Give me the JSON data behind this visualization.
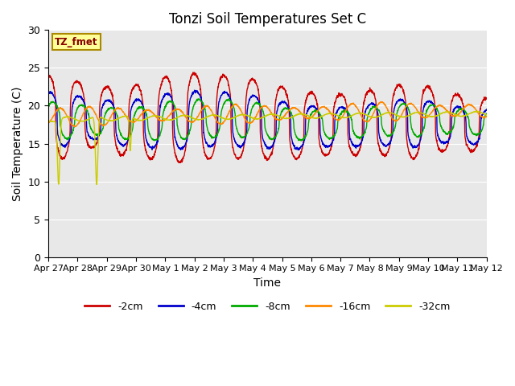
{
  "title": "Tonzi Soil Temperatures Set C",
  "xlabel": "Time",
  "ylabel": "Soil Temperature (C)",
  "ylim": [
    0,
    30
  ],
  "yticks": [
    0,
    5,
    10,
    15,
    20,
    25,
    30
  ],
  "background_color": "#e8e8e8",
  "label_box_text": "TZ_fmet",
  "label_box_color": "#ffff99",
  "label_box_edge": "#aa8800",
  "colors": {
    "-2cm": "#cc0000",
    "-4cm": "#0000cc",
    "-8cm": "#00aa00",
    "-16cm": "#ff8800",
    "-32cm": "#cccc00"
  },
  "legend_labels": [
    "-2cm",
    "-4cm",
    "-8cm",
    "-16cm",
    "-32cm"
  ],
  "xtick_labels": [
    "Apr 27",
    "Apr 28",
    "Apr 29",
    "Apr 30",
    "May 1",
    "May 2",
    "May 3",
    "May 4",
    "May 5",
    "May 6",
    "May 7",
    "May 8",
    "May 9",
    "May 10",
    "May 11",
    "May 12"
  ],
  "n_days": 15,
  "points_per_day": 144
}
